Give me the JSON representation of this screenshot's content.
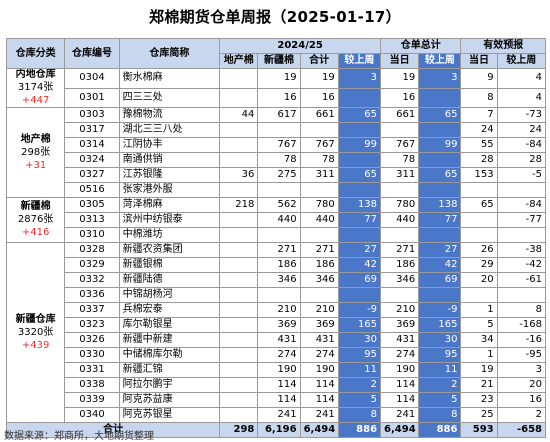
{
  "title": "郑棉期货仓单周报（2025-01-17）",
  "headers": {
    "col_category": "仓库分类",
    "col_code": "仓库编号",
    "col_name": "仓库简称",
    "group_date": "2024/25",
    "group_total": "仓单总计",
    "group_forecast": "有效预报",
    "sub_local": "地产棉",
    "sub_xj": "新疆棉",
    "sub_total": "合计",
    "sub_wow": "较上周",
    "sub_today": "当日",
    "sub_wow2": "较上周",
    "sub_today2": "当日",
    "sub_wow3": "较上周"
  },
  "categories": [
    {
      "name": "内地仓库",
      "value": "3174张",
      "change": "+447"
    },
    {
      "name": "地产棉",
      "value": "298张",
      "change": "+31"
    },
    {
      "name": "新疆棉",
      "value": "2876张",
      "change": "+416"
    },
    {
      "name": "新疆仓库",
      "value": "3320张",
      "change": "+439"
    }
  ],
  "rows": [
    {
      "code": "0304",
      "name": "衡水棉麻",
      "local": "",
      "xj": "19",
      "total": "19",
      "wow": "3",
      "today": "19",
      "wow2": "3",
      "fc": "9",
      "fcwow": "4"
    },
    {
      "code": "0301",
      "name": "四三三处",
      "local": "",
      "xj": "16",
      "total": "16",
      "wow": "",
      "today": "16",
      "wow2": "",
      "fc": "8",
      "fcwow": "4"
    },
    {
      "code": "0303",
      "name": "豫棉物流",
      "local": "44",
      "xj": "617",
      "total": "661",
      "wow": "65",
      "today": "661",
      "wow2": "65",
      "fc": "7",
      "fcwow": "-73"
    },
    {
      "code": "0317",
      "name": "湖北三三八处",
      "local": "",
      "xj": "",
      "total": "",
      "wow": "",
      "today": "",
      "wow2": "",
      "fc": "24",
      "fcwow": "24"
    },
    {
      "code": "0314",
      "name": "江阴协丰",
      "local": "",
      "xj": "767",
      "total": "767",
      "wow": "99",
      "today": "767",
      "wow2": "99",
      "fc": "55",
      "fcwow": "-84"
    },
    {
      "code": "0324",
      "name": "南通供销",
      "local": "",
      "xj": "78",
      "total": "78",
      "wow": "",
      "today": "78",
      "wow2": "",
      "fc": "28",
      "fcwow": "28"
    },
    {
      "code": "0327",
      "name": "江苏银隆",
      "local": "36",
      "xj": "275",
      "total": "311",
      "wow": "65",
      "today": "311",
      "wow2": "65",
      "fc": "153",
      "fcwow": "-5"
    },
    {
      "code": "0516",
      "name": "张家港外服",
      "local": "",
      "xj": "",
      "total": "",
      "wow": "",
      "today": "",
      "wow2": "",
      "fc": "",
      "fcwow": ""
    },
    {
      "code": "0305",
      "name": "菏泽棉麻",
      "local": "218",
      "xj": "562",
      "total": "780",
      "wow": "138",
      "today": "780",
      "wow2": "138",
      "fc": "65",
      "fcwow": "-84"
    },
    {
      "code": "0313",
      "name": "滨州中纺银泰",
      "local": "",
      "xj": "440",
      "total": "440",
      "wow": "77",
      "today": "440",
      "wow2": "77",
      "fc": "",
      "fcwow": "-77"
    },
    {
      "code": "0310",
      "name": "中棉潍坊",
      "local": "",
      "xj": "",
      "total": "",
      "wow": "",
      "today": "",
      "wow2": "",
      "fc": "",
      "fcwow": ""
    },
    {
      "code": "0328",
      "name": "新疆农资集团",
      "local": "",
      "xj": "271",
      "total": "271",
      "wow": "27",
      "today": "271",
      "wow2": "27",
      "fc": "26",
      "fcwow": "-38"
    },
    {
      "code": "0329",
      "name": "新疆银棉",
      "local": "",
      "xj": "186",
      "total": "186",
      "wow": "42",
      "today": "186",
      "wow2": "42",
      "fc": "29",
      "fcwow": "-42"
    },
    {
      "code": "0332",
      "name": "新疆陆德",
      "local": "",
      "xj": "346",
      "total": "346",
      "wow": "69",
      "today": "346",
      "wow2": "69",
      "fc": "20",
      "fcwow": "-61"
    },
    {
      "code": "0336",
      "name": "中锦胡杨河",
      "local": "",
      "xj": "",
      "total": "",
      "wow": "",
      "today": "",
      "wow2": "",
      "fc": "",
      "fcwow": ""
    },
    {
      "code": "0337",
      "name": "兵棉宏泰",
      "local": "",
      "xj": "210",
      "total": "210",
      "wow": "-9",
      "today": "210",
      "wow2": "-9",
      "fc": "1",
      "fcwow": "8"
    },
    {
      "code": "0323",
      "name": "库尔勒银星",
      "local": "",
      "xj": "369",
      "total": "369",
      "wow": "165",
      "today": "369",
      "wow2": "165",
      "fc": "5",
      "fcwow": "-168"
    },
    {
      "code": "0326",
      "name": "新疆中新建",
      "local": "",
      "xj": "431",
      "total": "431",
      "wow": "30",
      "today": "431",
      "wow2": "30",
      "fc": "34",
      "fcwow": "-16"
    },
    {
      "code": "0330",
      "name": "中储棉库尔勒",
      "local": "",
      "xj": "274",
      "total": "274",
      "wow": "95",
      "today": "274",
      "wow2": "95",
      "fc": "1",
      "fcwow": "-95"
    },
    {
      "code": "0331",
      "name": "新疆汇锦",
      "local": "",
      "xj": "190",
      "total": "190",
      "wow": "11",
      "today": "190",
      "wow2": "11",
      "fc": "19",
      "fcwow": "3"
    },
    {
      "code": "0338",
      "name": "阿拉尔鹏宇",
      "local": "",
      "xj": "114",
      "total": "114",
      "wow": "2",
      "today": "114",
      "wow2": "2",
      "fc": "21",
      "fcwow": "20"
    },
    {
      "code": "0339",
      "name": "阿克苏益康",
      "local": "",
      "xj": "114",
      "total": "114",
      "wow": "5",
      "today": "114",
      "wow2": "5",
      "fc": "23",
      "fcwow": "16"
    },
    {
      "code": "0340",
      "name": "阿克苏银星",
      "local": "",
      "xj": "241",
      "total": "241",
      "wow": "8",
      "today": "241",
      "wow2": "8",
      "fc": "25",
      "fcwow": "2"
    }
  ],
  "total_row": {
    "label": "合计",
    "local": "298",
    "xj": "6,196",
    "total": "6,494",
    "wow": "886",
    "today": "6,494",
    "wow2": "886",
    "fc": "593",
    "fcwow": "-658"
  },
  "footer": "数据来源：郑商所，大地期货整理",
  "colors": {
    "accent": "#4a77c7",
    "header_light": "#c9d7ee",
    "row_light": "#dde6f4",
    "positive": "#e8302a"
  }
}
